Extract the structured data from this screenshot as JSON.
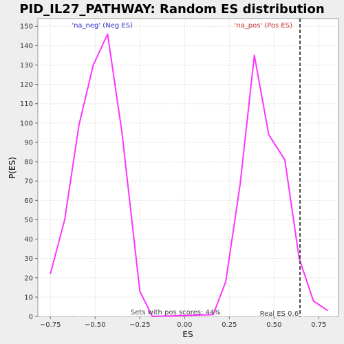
{
  "chart_data": {
    "type": "line",
    "title": "PID_IL27_PATHWAY: Random ES distribution",
    "xlabel": "ES",
    "ylabel": "P(ES)",
    "xlim": [
      -0.82,
      0.86
    ],
    "ylim": [
      0,
      154
    ],
    "x_ticks": [
      -0.75,
      -0.5,
      -0.25,
      0.0,
      0.25,
      0.5,
      0.75
    ],
    "x_tick_labels": [
      "−0.75",
      "−0.50",
      "−0.25",
      "0.00",
      "0.25",
      "0.50",
      "0.75"
    ],
    "y_ticks": [
      0,
      10,
      20,
      30,
      40,
      50,
      60,
      70,
      80,
      90,
      100,
      110,
      120,
      130,
      140,
      150
    ],
    "y_tick_labels": [
      "0",
      "10",
      "20",
      "30",
      "40",
      "50",
      "60",
      "70",
      "80",
      "90",
      "100",
      "110",
      "120",
      "130",
      "140",
      "150"
    ],
    "grid": true,
    "series": [
      {
        "color": "#ff33ff",
        "points": [
          [
            -0.75,
            22
          ],
          [
            -0.67,
            50
          ],
          [
            -0.59,
            99
          ],
          [
            -0.51,
            130
          ],
          [
            -0.43,
            146
          ],
          [
            -0.35,
            95
          ],
          [
            -0.25,
            13
          ],
          [
            -0.18,
            0
          ],
          [
            0.16,
            1
          ],
          [
            0.23,
            18
          ],
          [
            0.31,
            68
          ],
          [
            0.39,
            135
          ],
          [
            0.47,
            94
          ],
          [
            0.56,
            81
          ],
          [
            0.64,
            30
          ],
          [
            0.72,
            8
          ],
          [
            0.8,
            3
          ]
        ]
      }
    ],
    "annotations": {
      "neg_label": "'na_neg' (Neg ES)",
      "neg_color": "#3333cc",
      "pos_label": "'na_pos' (Pos ES)",
      "pos_color": "#cc3333",
      "pos_scores": "Sets with pos scores: 44%",
      "real_es_label": "Real ES 0.6",
      "real_es_value": 0.645
    }
  }
}
